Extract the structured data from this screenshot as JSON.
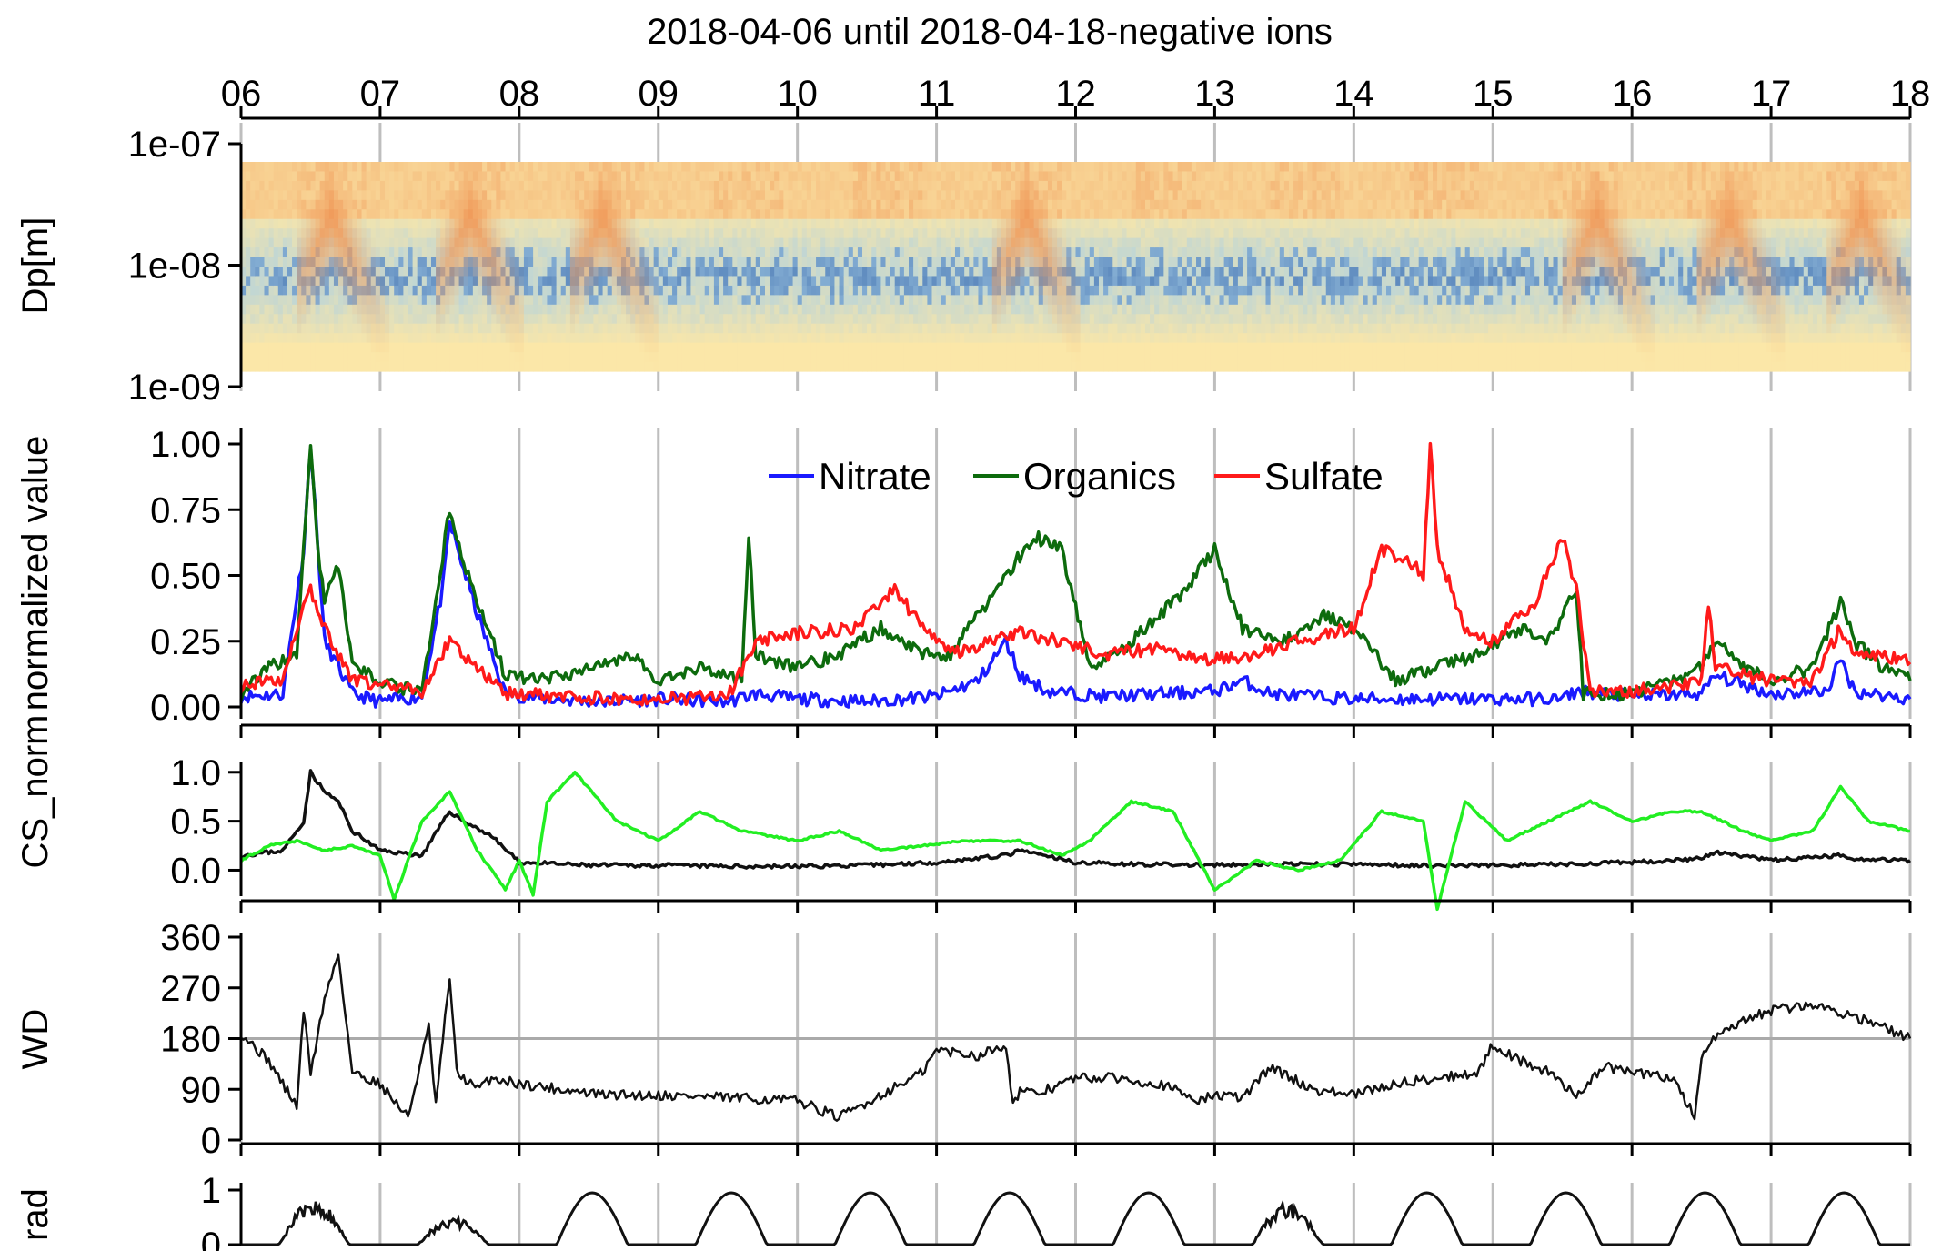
{
  "title": "2018-04-06 until 2018-04-18-negative ions",
  "chart_data": [
    {
      "type": "heatmap",
      "name": "size-distribution",
      "ylabel": "Dp[m]",
      "y_scale": "log",
      "y_ticks": [
        "1e-09",
        "1e-08",
        "1e-07"
      ],
      "x_ticks": [
        "06",
        "07",
        "08",
        "09",
        "10",
        "11",
        "12",
        "13",
        "14",
        "15",
        "16",
        "17",
        "18"
      ],
      "x_range_days": [
        6,
        18
      ],
      "ylim": [
        1e-09,
        1e-07
      ],
      "event_days": [
        6.45,
        7.45,
        8.4,
        11.45,
        15.55,
        16.5,
        17.45
      ],
      "colors": {
        "low": "#fbe7a8",
        "mid": "#a8cfe6",
        "high": "#4a78b4",
        "hot": "#f09a5a"
      }
    },
    {
      "type": "line",
      "name": "normalized-components",
      "ylabel": "normalized value",
      "ylim": [
        0,
        1
      ],
      "y_ticks": [
        "0.00",
        "0.25",
        "0.50",
        "0.75",
        "1.00"
      ],
      "legend": {
        "placement": "top-center",
        "entries": [
          "Nitrate",
          "Organics",
          "Sulfate"
        ]
      },
      "series": [
        {
          "name": "Nitrate",
          "color": "#1a1aff",
          "x": [
            6.0,
            6.3,
            6.45,
            6.5,
            6.6,
            6.7,
            6.8,
            7.0,
            7.3,
            7.45,
            7.5,
            7.7,
            7.9,
            8.2,
            8.6,
            9.0,
            9.5,
            9.7,
            10.0,
            10.5,
            11.0,
            11.3,
            11.5,
            11.6,
            11.8,
            12.2,
            12.6,
            13.0,
            13.2,
            13.4,
            14.0,
            14.5,
            15.0,
            15.5,
            15.6,
            16.0,
            16.5,
            16.6,
            17.0,
            17.4,
            17.5,
            17.6,
            18.0
          ],
          "y": [
            0.04,
            0.05,
            0.6,
            1.0,
            0.25,
            0.15,
            0.05,
            0.02,
            0.04,
            0.45,
            0.7,
            0.35,
            0.05,
            0.03,
            0.02,
            0.03,
            0.02,
            0.05,
            0.03,
            0.02,
            0.04,
            0.1,
            0.25,
            0.12,
            0.06,
            0.04,
            0.05,
            0.06,
            0.1,
            0.05,
            0.03,
            0.03,
            0.03,
            0.03,
            0.06,
            0.04,
            0.05,
            0.12,
            0.05,
            0.06,
            0.18,
            0.06,
            0.03
          ]
        },
        {
          "name": "Organics",
          "color": "#0d6b0d",
          "x": [
            6.0,
            6.2,
            6.4,
            6.5,
            6.55,
            6.6,
            6.7,
            6.8,
            7.0,
            7.3,
            7.5,
            7.6,
            7.7,
            7.9,
            8.2,
            8.5,
            8.8,
            9.0,
            9.3,
            9.6,
            9.65,
            9.7,
            10.0,
            10.3,
            10.6,
            10.9,
            11.1,
            11.3,
            11.5,
            11.7,
            11.9,
            12.1,
            12.3,
            12.5,
            12.8,
            13.0,
            13.2,
            13.5,
            13.8,
            14.0,
            14.3,
            14.6,
            14.9,
            15.2,
            15.4,
            15.6,
            15.65,
            16.0,
            16.3,
            16.5,
            16.6,
            16.8,
            17.0,
            17.3,
            17.5,
            17.6,
            17.8,
            18.0
          ],
          "y": [
            0.05,
            0.15,
            0.2,
            1.0,
            0.6,
            0.4,
            0.55,
            0.15,
            0.1,
            0.05,
            0.75,
            0.55,
            0.4,
            0.12,
            0.1,
            0.15,
            0.2,
            0.1,
            0.15,
            0.1,
            0.65,
            0.2,
            0.15,
            0.2,
            0.3,
            0.2,
            0.2,
            0.35,
            0.5,
            0.65,
            0.6,
            0.15,
            0.2,
            0.3,
            0.45,
            0.6,
            0.3,
            0.25,
            0.35,
            0.3,
            0.1,
            0.15,
            0.2,
            0.3,
            0.25,
            0.45,
            0.05,
            0.05,
            0.1,
            0.15,
            0.25,
            0.15,
            0.1,
            0.15,
            0.4,
            0.25,
            0.15,
            0.1
          ]
        },
        {
          "name": "Sulfate",
          "color": "#ff1a1a",
          "x": [
            6.0,
            6.3,
            6.45,
            6.5,
            6.6,
            6.8,
            7.0,
            7.3,
            7.5,
            7.7,
            7.9,
            8.3,
            8.7,
            9.0,
            9.5,
            9.7,
            10.0,
            10.4,
            10.7,
            10.9,
            11.1,
            11.4,
            11.6,
            11.9,
            12.2,
            12.6,
            13.0,
            13.3,
            13.6,
            14.0,
            14.2,
            14.4,
            14.5,
            14.55,
            14.6,
            14.8,
            15.0,
            15.3,
            15.5,
            15.6,
            15.7,
            16.0,
            16.3,
            16.5,
            16.55,
            16.6,
            16.8,
            17.0,
            17.3,
            17.5,
            17.6,
            17.8,
            18.0
          ],
          "y": [
            0.08,
            0.1,
            0.4,
            0.45,
            0.3,
            0.1,
            0.08,
            0.06,
            0.25,
            0.15,
            0.05,
            0.04,
            0.03,
            0.03,
            0.04,
            0.25,
            0.28,
            0.3,
            0.45,
            0.3,
            0.2,
            0.25,
            0.28,
            0.25,
            0.2,
            0.22,
            0.18,
            0.2,
            0.25,
            0.3,
            0.6,
            0.55,
            0.5,
            1.0,
            0.6,
            0.3,
            0.25,
            0.4,
            0.65,
            0.45,
            0.06,
            0.06,
            0.08,
            0.1,
            0.4,
            0.15,
            0.12,
            0.1,
            0.1,
            0.3,
            0.2,
            0.2,
            0.17
          ]
        }
      ]
    },
    {
      "type": "line",
      "name": "condensation-sink",
      "ylabel": "CS_norm",
      "ylim": [
        -0.2,
        1.1
      ],
      "y_ticks": [
        "0.0",
        "0.5",
        "1.0"
      ],
      "series": [
        {
          "color": "#111111",
          "x": [
            6.0,
            6.3,
            6.45,
            6.5,
            6.6,
            6.7,
            6.8,
            7.0,
            7.3,
            7.5,
            7.6,
            7.8,
            8.0,
            8.5,
            9.0,
            9.5,
            10.0,
            10.5,
            11.0,
            11.5,
            11.6,
            12.0,
            12.5,
            13.0,
            13.5,
            14.0,
            14.5,
            15.0,
            15.5,
            16.0,
            16.5,
            16.6,
            17.0,
            17.5,
            17.6,
            18.0
          ],
          "y": [
            0.15,
            0.2,
            0.5,
            1.0,
            0.8,
            0.7,
            0.4,
            0.2,
            0.15,
            0.6,
            0.5,
            0.35,
            0.08,
            0.05,
            0.05,
            0.04,
            0.04,
            0.05,
            0.08,
            0.15,
            0.2,
            0.08,
            0.06,
            0.05,
            0.06,
            0.06,
            0.05,
            0.05,
            0.06,
            0.08,
            0.12,
            0.18,
            0.1,
            0.15,
            0.12,
            0.1
          ]
        },
        {
          "color": "#22ee22",
          "x": [
            6.0,
            6.2,
            6.4,
            6.6,
            6.8,
            7.0,
            7.1,
            7.3,
            7.5,
            7.7,
            7.9,
            8.0,
            8.1,
            8.2,
            8.4,
            8.7,
            9.0,
            9.3,
            9.6,
            10.0,
            10.3,
            10.6,
            10.9,
            11.2,
            11.6,
            11.9,
            12.1,
            12.4,
            12.7,
            13.0,
            13.3,
            13.6,
            13.9,
            14.2,
            14.5,
            14.6,
            14.8,
            15.1,
            15.4,
            15.7,
            16.0,
            16.3,
            16.5,
            16.8,
            17.0,
            17.3,
            17.5,
            17.7,
            18.0
          ],
          "y": [
            0.1,
            0.25,
            0.3,
            0.2,
            0.25,
            0.15,
            -0.3,
            0.5,
            0.8,
            0.2,
            -0.2,
            0.1,
            -0.25,
            0.7,
            1.0,
            0.5,
            0.3,
            0.6,
            0.4,
            0.3,
            0.4,
            0.2,
            0.25,
            0.3,
            0.3,
            0.15,
            0.3,
            0.7,
            0.6,
            -0.2,
            0.1,
            0.0,
            0.1,
            0.6,
            0.5,
            -0.4,
            0.7,
            0.3,
            0.5,
            0.7,
            0.5,
            0.6,
            0.6,
            0.4,
            0.3,
            0.4,
            0.85,
            0.5,
            0.4
          ]
        }
      ]
    },
    {
      "type": "line",
      "name": "wind-direction",
      "ylabel": "WD",
      "ylim": [
        0,
        360
      ],
      "y_ticks": [
        "0",
        "90",
        "180",
        "270",
        "360"
      ],
      "reference_line": 180,
      "series": [
        {
          "color": "#111111",
          "x": [
            6.0,
            6.2,
            6.4,
            6.45,
            6.5,
            6.6,
            6.7,
            6.8,
            6.9,
            7.0,
            7.2,
            7.35,
            7.4,
            7.5,
            7.55,
            7.7,
            7.8,
            8.0,
            8.3,
            8.6,
            9.0,
            9.5,
            10.0,
            10.3,
            10.6,
            10.9,
            11.0,
            11.3,
            11.5,
            11.55,
            11.6,
            11.7,
            12.0,
            12.3,
            12.6,
            12.9,
            13.0,
            13.2,
            13.4,
            13.7,
            14.0,
            14.3,
            14.6,
            14.9,
            15.0,
            15.2,
            15.4,
            15.6,
            15.8,
            16.0,
            16.3,
            16.45,
            16.5,
            16.6,
            16.8,
            17.0,
            17.3,
            17.6,
            17.8,
            18.0
          ],
          "y": [
            190,
            140,
            60,
            230,
            120,
            250,
            330,
            120,
            110,
            100,
            40,
            200,
            60,
            290,
            120,
            90,
            110,
            100,
            90,
            80,
            80,
            75,
            70,
            40,
            80,
            120,
            160,
            150,
            170,
            60,
            90,
            80,
            110,
            110,
            100,
            70,
            80,
            75,
            130,
            90,
            80,
            100,
            110,
            120,
            170,
            140,
            120,
            80,
            130,
            120,
            110,
            40,
            150,
            180,
            210,
            230,
            240,
            220,
            200,
            180
          ]
        }
      ]
    },
    {
      "type": "line",
      "name": "radiation",
      "ylabel": "rad",
      "ylim": [
        0,
        1
      ],
      "y_ticks": [
        "0",
        "1"
      ],
      "series": [
        {
          "color": "#111111",
          "day_peaks": [
            0.75,
            0.45,
            0.95,
            0.95,
            0.95,
            0.95,
            0.95,
            0.7,
            0.95,
            0.95,
            0.95,
            0.95
          ]
        }
      ]
    }
  ]
}
